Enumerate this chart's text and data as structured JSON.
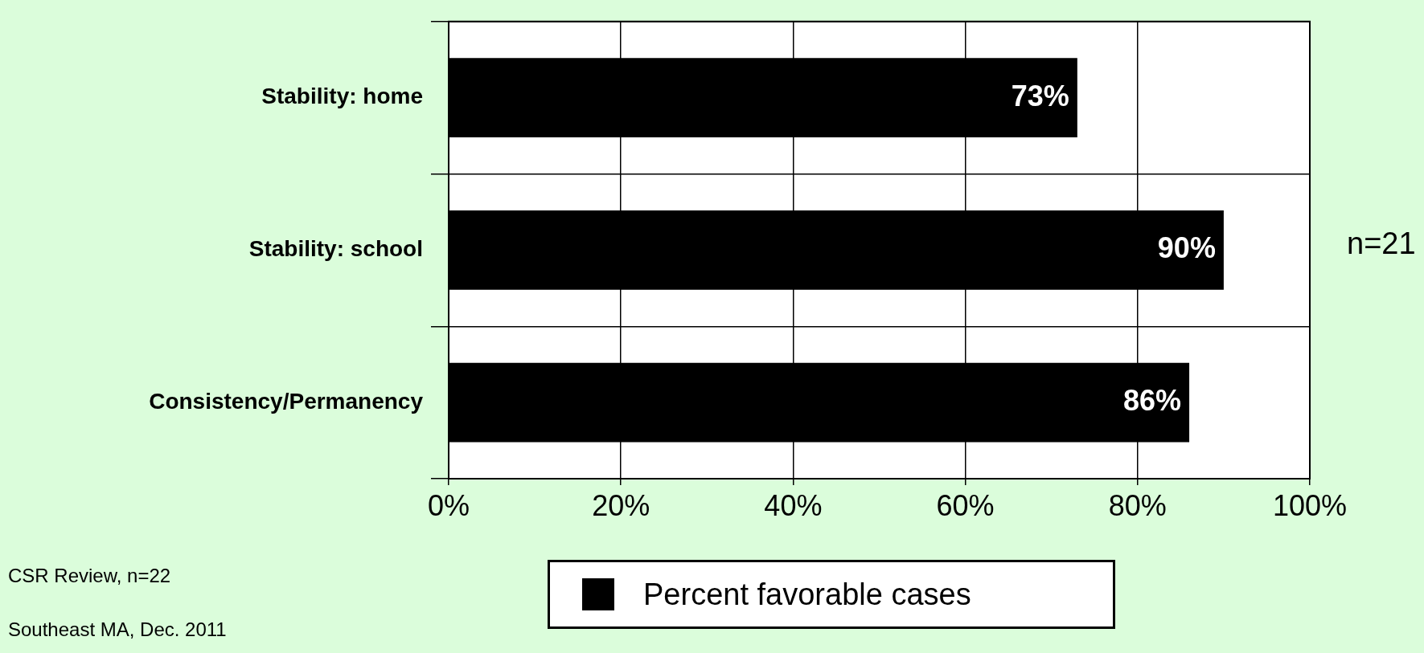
{
  "chart_data": {
    "type": "bar",
    "orientation": "horizontal",
    "categories": [
      "Stability: home",
      "Stability: school",
      "Consistency/Permanency"
    ],
    "series": [
      {
        "name": "Percent favorable cases",
        "color": "#000000",
        "values": [
          73,
          90,
          86
        ],
        "value_labels": [
          "73%",
          "90%",
          "86%"
        ]
      }
    ],
    "xlim": [
      0,
      100
    ],
    "xticks": [
      {
        "value": 0,
        "label": "0%"
      },
      {
        "value": 20,
        "label": "20%"
      },
      {
        "value": 40,
        "label": "40%"
      },
      {
        "value": 60,
        "label": "60%"
      },
      {
        "value": 80,
        "label": "80%"
      },
      {
        "value": 100,
        "label": "100%"
      }
    ],
    "grid": true,
    "legend": "bottom",
    "annotations": [
      "n=21",
      "CSR Review, n=22",
      "Southeast MA, Dec. 2011"
    ]
  }
}
